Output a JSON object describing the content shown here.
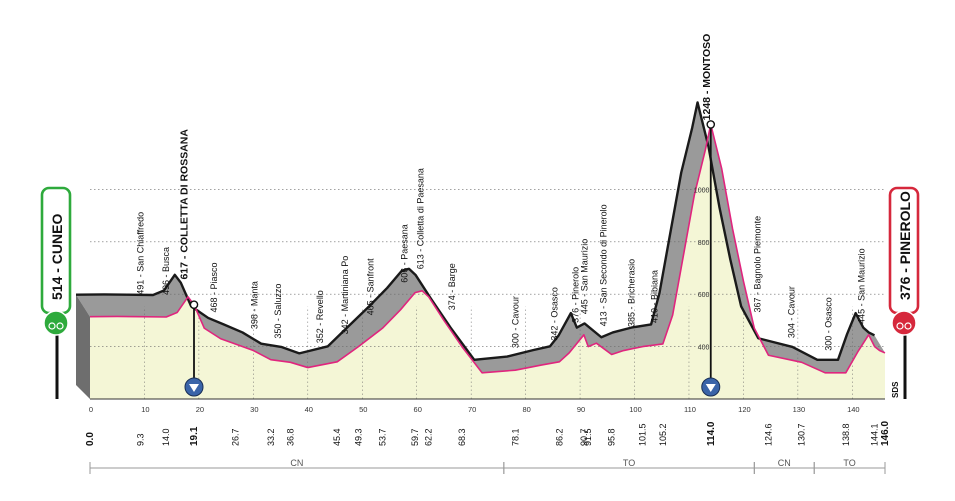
{
  "chart_data": {
    "type": "area",
    "title": "",
    "xlabel": "",
    "ylabel": "",
    "xlim": [
      0,
      146
    ],
    "ylim": [
      200,
      1200
    ],
    "yticks": [
      400,
      600,
      800,
      1000
    ],
    "xticks": [
      0,
      10,
      20,
      30,
      40,
      50,
      60,
      70,
      80,
      90,
      100,
      110,
      120,
      130,
      140
    ],
    "start": {
      "alt": "514",
      "name": "CUNEO",
      "km": "0.0",
      "color": "#2eaa3c"
    },
    "finish": {
      "alt": "376",
      "name": "PINEROLO",
      "km": "146.0",
      "color": "#d6283c"
    },
    "sds_label": "SDS",
    "profile": {
      "x": [
        0,
        5,
        9.3,
        14,
        16,
        17,
        18,
        19.1,
        21,
        24,
        26.7,
        30,
        33.2,
        36.8,
        40,
        45.4,
        49.3,
        53.7,
        57,
        59.7,
        61,
        62.2,
        65,
        68.3,
        72,
        78.1,
        83,
        86.2,
        88,
        90.7,
        91.5,
        93,
        95.8,
        98,
        101.5,
        105.2,
        107,
        109,
        111,
        113,
        114,
        116,
        118,
        120,
        122,
        124.6,
        130.7,
        135,
        138.8,
        141,
        143,
        144.1,
        145,
        146
      ],
      "y": [
        514,
        515,
        514,
        513,
        530,
        560,
        590,
        560,
        470,
        430,
        410,
        385,
        350,
        340,
        320,
        342,
        400,
        470,
        540,
        606,
        613,
        590,
        500,
        400,
        300,
        310,
        330,
        342,
        376,
        445,
        400,
        413,
        370,
        385,
        400,
        410,
        520,
        750,
        980,
        1150,
        1248,
        1080,
        850,
        650,
        470,
        367,
        340,
        300,
        300,
        380,
        445,
        400,
        385,
        376
      ]
    },
    "places": [
      {
        "km": 9.3,
        "alt": "491",
        "name": "San Chiaffredo"
      },
      {
        "km": 14.0,
        "alt": "496",
        "name": "Busca"
      },
      {
        "km": 17.4,
        "alt": "617",
        "name": "COLLETTA DI ROSSANA",
        "gpm": true
      },
      {
        "km": 22.8,
        "alt": "468",
        "name": "Piasco"
      },
      {
        "km": 30.2,
        "alt": "398",
        "name": "Manta"
      },
      {
        "km": 34.5,
        "alt": "350",
        "name": "Saluzzo"
      },
      {
        "km": 42.2,
        "alt": "352",
        "name": "Revello"
      },
      {
        "km": 46.8,
        "alt": "342",
        "name": "Martiniana Po"
      },
      {
        "km": 51.5,
        "alt": "465",
        "name": "Sanfront"
      },
      {
        "km": 57.8,
        "alt": "606",
        "name": "Paesana"
      },
      {
        "km": 60.7,
        "alt": "613",
        "name": "Colletta di Paesana"
      },
      {
        "km": 66.5,
        "alt": "374",
        "name": "Barge"
      },
      {
        "km": 78.1,
        "alt": "300",
        "name": "Cavour"
      },
      {
        "km": 85.3,
        "alt": "342",
        "name": "Osasco"
      },
      {
        "km": 89.2,
        "alt": "376",
        "name": "Pinerolo"
      },
      {
        "km": 90.8,
        "alt": "445",
        "name": "San Maurizio"
      },
      {
        "km": 94.3,
        "alt": "413",
        "name": "San Secondo di Pinerolo"
      },
      {
        "km": 99.4,
        "alt": "385",
        "name": "Bricherasio"
      },
      {
        "km": 103.7,
        "alt": "410",
        "name": "Bibiana"
      },
      {
        "km": 113.3,
        "alt": "1248",
        "name": "MONTOSO",
        "gpm": true
      },
      {
        "km": 122.6,
        "alt": "367",
        "name": "Bagnolo Piemonte"
      },
      {
        "km": 128.8,
        "alt": "304",
        "name": "Cavour"
      },
      {
        "km": 135.6,
        "alt": "300",
        "name": "Osasco"
      },
      {
        "km": 141.7,
        "alt": "445",
        "name": "San Maurizio"
      }
    ],
    "km_labels": [
      {
        "km": 0,
        "text": "0.0",
        "bold": true
      },
      {
        "km": 9.3,
        "text": "9.3"
      },
      {
        "km": 14.0,
        "text": "14.0"
      },
      {
        "km": 19.1,
        "text": "19.1",
        "bold": true
      },
      {
        "km": 26.7,
        "text": "26.7"
      },
      {
        "km": 33.2,
        "text": "33.2"
      },
      {
        "km": 36.8,
        "text": "36.8"
      },
      {
        "km": 45.4,
        "text": "45.4"
      },
      {
        "km": 49.3,
        "text": "49.3"
      },
      {
        "km": 53.7,
        "text": "53.7"
      },
      {
        "km": 59.7,
        "text": "59.7"
      },
      {
        "km": 62.2,
        "text": "62.2"
      },
      {
        "km": 68.3,
        "text": "68.3"
      },
      {
        "km": 78.1,
        "text": "78.1"
      },
      {
        "km": 86.2,
        "text": "86.2"
      },
      {
        "km": 90.7,
        "text": "90.7"
      },
      {
        "km": 91.5,
        "text": "91.5"
      },
      {
        "km": 95.8,
        "text": "95.8"
      },
      {
        "km": 101.5,
        "text": "101.5"
      },
      {
        "km": 105.2,
        "text": "105.2"
      },
      {
        "km": 114.0,
        "text": "114.0",
        "bold": true
      },
      {
        "km": 124.6,
        "text": "124.6"
      },
      {
        "km": 130.7,
        "text": "130.7"
      },
      {
        "km": 138.8,
        "text": "138.8"
      },
      {
        "km": 144.1,
        "text": "144.1"
      },
      {
        "km": 146.0,
        "text": "146.0",
        "bold": true
      }
    ],
    "markers": [
      19.1,
      114.0
    ],
    "provinces": [
      {
        "from": 0,
        "to": 76.0,
        "label": "CN"
      },
      {
        "from": 76.0,
        "to": 122.0,
        "label": "TO"
      },
      {
        "from": 122.0,
        "to": 133.0,
        "label": "CN"
      },
      {
        "from": 133.0,
        "to": 146.0,
        "label": "TO"
      }
    ],
    "colors": {
      "fill": "#f4f6d6",
      "shade": "#9a9a9a",
      "top_line": "#1a1a1a",
      "road": "#e0257e",
      "grid": "#6b6b6b"
    }
  }
}
